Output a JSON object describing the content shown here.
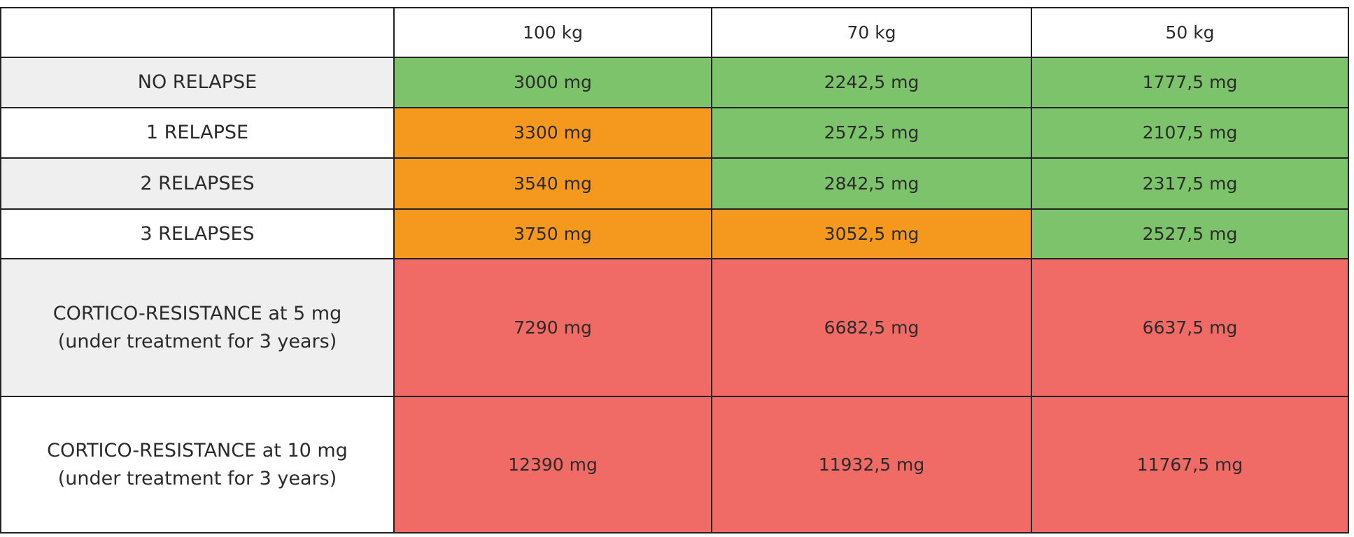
{
  "table": {
    "header": [
      "100 kg",
      "70 kg",
      "50 kg"
    ],
    "rows": [
      {
        "label": [
          "NO RELAPSE"
        ],
        "cells": [
          "3000 mg",
          "2242,5 mg",
          "1777,5 mg"
        ]
      },
      {
        "label": [
          "1 RELAPSE"
        ],
        "cells": [
          "3300 mg",
          "2572,5 mg",
          "2107,5 mg"
        ]
      },
      {
        "label": [
          "2 RELAPSES"
        ],
        "cells": [
          "3540 mg",
          "2842,5 mg",
          "2317,5 mg"
        ]
      },
      {
        "label": [
          "3 RELAPSES"
        ],
        "cells": [
          "3750 mg",
          "3052,5 mg",
          "2527,5 mg"
        ]
      },
      {
        "label": [
          "CORTICO-RESISTANCE at 5 mg",
          "(under treatment for 3 years)"
        ],
        "cells": [
          "7290 mg",
          "6682,5 mg",
          "6637,5 mg"
        ]
      },
      {
        "label": [
          "CORTICO-RESISTANCE at 10 mg",
          "(under treatment for 3 years)"
        ],
        "cells": [
          "12390 mg",
          "11932,5 mg",
          "11767,5 mg"
        ]
      }
    ]
  }
}
